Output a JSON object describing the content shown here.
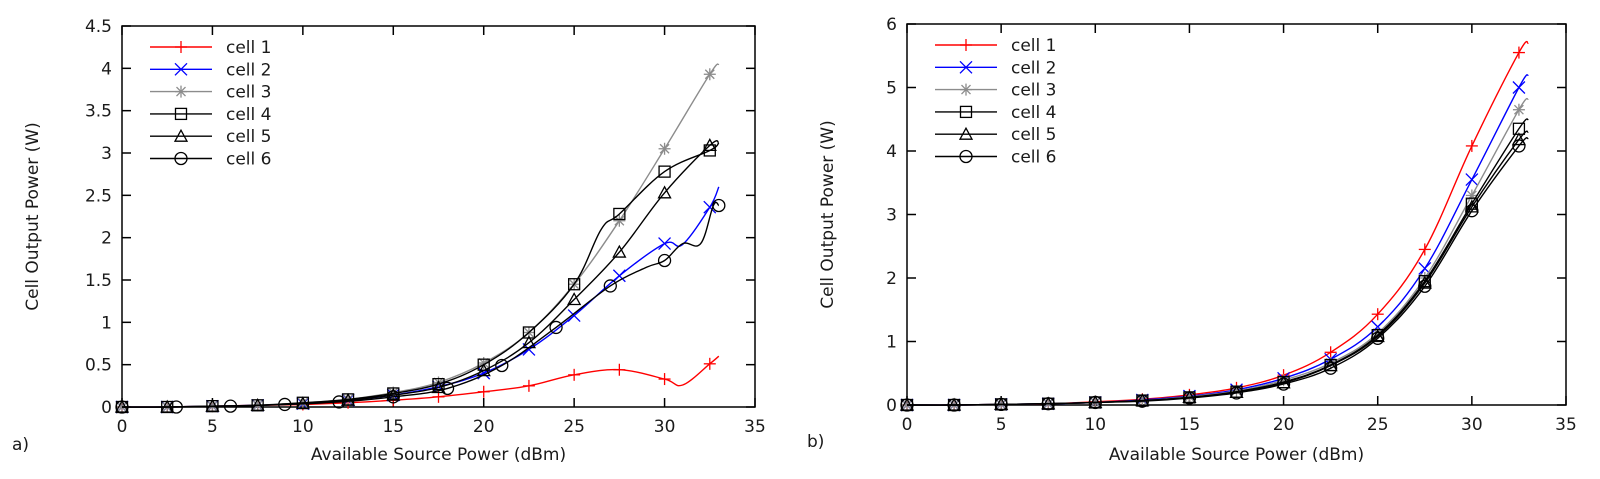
{
  "chart_data": [
    {
      "type": "line",
      "panel_label": "a)",
      "title": "",
      "xlabel": "Available Source Power (dBm)",
      "ylabel": "Cell Output Power (W)",
      "xlim": [
        0,
        35
      ],
      "ylim": [
        0,
        4.5
      ],
      "xticks": [
        0,
        5,
        10,
        15,
        20,
        25,
        30,
        35
      ],
      "yticks": [
        0,
        0.5,
        1,
        1.5,
        2,
        2.5,
        3,
        3.5,
        4,
        4.5
      ],
      "ytick_labels": [
        "0",
        "0.5",
        "1",
        "1.5",
        "2",
        "2.5",
        "3",
        "3.5",
        "4",
        "4.5"
      ],
      "xtick_labels": [
        "0",
        "5",
        "10",
        "15",
        "20",
        "25",
        "30",
        "35"
      ],
      "grid": false,
      "legend_position": "top-left",
      "series": [
        {
          "name": "cell 1",
          "color": "#ff0000",
          "marker": "plus",
          "x": [
            0,
            2.5,
            5,
            7.5,
            10,
            12.5,
            15,
            17.5,
            20,
            22.5,
            25,
            27.5,
            30,
            31,
            32.5,
            33
          ],
          "y": [
            0,
            0,
            0.01,
            0.02,
            0.03,
            0.05,
            0.08,
            0.12,
            0.18,
            0.25,
            0.38,
            0.44,
            0.33,
            0.26,
            0.51,
            0.6
          ],
          "marker_idx": [
            0,
            1,
            2,
            3,
            4,
            5,
            6,
            7,
            8,
            9,
            10,
            11,
            12,
            14
          ]
        },
        {
          "name": "cell 2",
          "color": "#0000ff",
          "marker": "x",
          "x": [
            0,
            2.5,
            5,
            7.5,
            10,
            12.5,
            15,
            17.5,
            20,
            22.5,
            25,
            27.5,
            30,
            31,
            32.5,
            33
          ],
          "y": [
            0,
            0,
            0.01,
            0.02,
            0.04,
            0.08,
            0.14,
            0.24,
            0.4,
            0.68,
            1.08,
            1.55,
            1.93,
            1.92,
            2.36,
            2.6
          ],
          "marker_idx": [
            0,
            1,
            2,
            3,
            4,
            5,
            6,
            7,
            8,
            9,
            10,
            11,
            12,
            14
          ]
        },
        {
          "name": "cell 3",
          "color": "#8c8c8c",
          "marker": "star",
          "x": [
            0,
            2.5,
            5,
            7.5,
            10,
            12.5,
            15,
            17.5,
            20,
            22.5,
            25,
            27.5,
            30,
            32.5,
            33
          ],
          "y": [
            0,
            0,
            0.01,
            0.02,
            0.05,
            0.09,
            0.17,
            0.29,
            0.52,
            0.88,
            1.45,
            2.2,
            3.05,
            3.93,
            4.05
          ],
          "marker_idx": [
            0,
            1,
            2,
            3,
            4,
            5,
            6,
            7,
            8,
            9,
            10,
            11,
            12,
            13
          ]
        },
        {
          "name": "cell 4",
          "color": "#000000",
          "marker": "square",
          "x": [
            0,
            2.5,
            5,
            7.5,
            10,
            12.5,
            15,
            17.5,
            20,
            22.5,
            25,
            26.5,
            27.5,
            30,
            32.5,
            33
          ],
          "y": [
            0,
            0,
            0.01,
            0.02,
            0.05,
            0.09,
            0.16,
            0.27,
            0.5,
            0.88,
            1.45,
            2.1,
            2.28,
            2.78,
            3.03,
            3.12
          ],
          "marker_idx": [
            0,
            1,
            2,
            3,
            4,
            5,
            6,
            7,
            8,
            9,
            10,
            12,
            13,
            14
          ]
        },
        {
          "name": "cell 5",
          "color": "#000000",
          "marker": "triangle",
          "x": [
            0,
            2.5,
            5,
            7.5,
            10,
            12.5,
            15,
            17.5,
            20,
            22.5,
            25,
            27.5,
            30,
            32.5,
            33
          ],
          "y": [
            0,
            0,
            0.01,
            0.02,
            0.04,
            0.08,
            0.14,
            0.23,
            0.43,
            0.76,
            1.27,
            1.83,
            2.53,
            3.09,
            3.12
          ],
          "marker_idx": [
            0,
            1,
            2,
            3,
            4,
            5,
            6,
            7,
            8,
            9,
            10,
            11,
            12,
            13
          ]
        },
        {
          "name": "cell 6",
          "color": "#000000",
          "marker": "circle",
          "x": [
            0,
            3,
            6,
            9,
            12,
            15,
            18,
            21,
            24,
            27,
            29,
            30,
            31,
            32,
            32.7,
            33
          ],
          "y": [
            0,
            0,
            0.01,
            0.03,
            0.06,
            0.12,
            0.22,
            0.49,
            0.94,
            1.43,
            1.65,
            1.73,
            1.93,
            1.93,
            2.38,
            2.38
          ],
          "marker_idx": [
            0,
            1,
            2,
            3,
            4,
            5,
            6,
            7,
            8,
            9,
            11,
            15
          ]
        }
      ]
    },
    {
      "type": "line",
      "panel_label": "b)",
      "title": "",
      "xlabel": "Available Source Power (dBm)",
      "ylabel": "Cell Output Power (W)",
      "xlim": [
        0,
        35
      ],
      "ylim": [
        0,
        6
      ],
      "xticks": [
        0,
        5,
        10,
        15,
        20,
        25,
        30,
        35
      ],
      "yticks": [
        0,
        1,
        2,
        3,
        4,
        5,
        6
      ],
      "ytick_labels": [
        "0",
        "1",
        "2",
        "3",
        "4",
        "5",
        "6"
      ],
      "xtick_labels": [
        "0",
        "5",
        "10",
        "15",
        "20",
        "25",
        "30",
        "35"
      ],
      "grid": false,
      "legend_position": "top-left",
      "series": [
        {
          "name": "cell 1",
          "color": "#ff0000",
          "marker": "plus",
          "x": [
            0,
            2.5,
            5,
            7.5,
            10,
            12.5,
            15,
            17.5,
            20,
            22.5,
            25,
            27.5,
            30,
            32.5,
            33
          ],
          "y": [
            0,
            0,
            0.01,
            0.02,
            0.05,
            0.09,
            0.16,
            0.27,
            0.47,
            0.83,
            1.43,
            2.45,
            4.08,
            5.55,
            5.7
          ],
          "marker_idx": [
            0,
            1,
            2,
            3,
            4,
            5,
            6,
            7,
            8,
            9,
            10,
            11,
            12,
            13
          ]
        },
        {
          "name": "cell 2",
          "color": "#0000ff",
          "marker": "x",
          "x": [
            0,
            2.5,
            5,
            7.5,
            10,
            12.5,
            15,
            17.5,
            20,
            22.5,
            25,
            27.5,
            30,
            32.5,
            33
          ],
          "y": [
            0,
            0,
            0.01,
            0.02,
            0.04,
            0.08,
            0.14,
            0.24,
            0.42,
            0.72,
            1.23,
            2.15,
            3.55,
            5.0,
            5.2
          ],
          "marker_idx": [
            0,
            1,
            2,
            3,
            4,
            5,
            6,
            7,
            8,
            9,
            10,
            11,
            12,
            13
          ]
        },
        {
          "name": "cell 3",
          "color": "#8c8c8c",
          "marker": "star",
          "x": [
            0,
            2.5,
            5,
            7.5,
            10,
            12.5,
            15,
            17.5,
            20,
            22.5,
            25,
            27.5,
            30,
            32.5,
            33
          ],
          "y": [
            0,
            0,
            0.01,
            0.02,
            0.04,
            0.07,
            0.13,
            0.22,
            0.39,
            0.66,
            1.13,
            2.0,
            3.3,
            4.65,
            4.82
          ],
          "marker_idx": [
            0,
            1,
            2,
            3,
            4,
            5,
            6,
            7,
            8,
            9,
            10,
            11,
            12,
            13
          ]
        },
        {
          "name": "cell 4",
          "color": "#000000",
          "marker": "square",
          "x": [
            0,
            2.5,
            5,
            7.5,
            10,
            12.5,
            15,
            17.5,
            20,
            22.5,
            25,
            27.5,
            30,
            32.5,
            33
          ],
          "y": [
            0,
            0,
            0.01,
            0.02,
            0.04,
            0.07,
            0.12,
            0.21,
            0.36,
            0.63,
            1.1,
            1.95,
            3.17,
            4.35,
            4.5
          ],
          "marker_idx": [
            0,
            1,
            2,
            3,
            4,
            5,
            6,
            7,
            8,
            9,
            10,
            11,
            12,
            13
          ]
        },
        {
          "name": "cell 5",
          "color": "#000000",
          "marker": "triangle",
          "x": [
            0,
            2.5,
            5,
            7.5,
            10,
            12.5,
            15,
            17.5,
            20,
            22.5,
            25,
            27.5,
            30,
            32.5,
            33
          ],
          "y": [
            0,
            0,
            0.01,
            0.02,
            0.04,
            0.07,
            0.12,
            0.2,
            0.35,
            0.62,
            1.08,
            1.92,
            3.12,
            4.18,
            4.3
          ],
          "marker_idx": [
            0,
            1,
            2,
            3,
            4,
            5,
            6,
            7,
            8,
            9,
            10,
            11,
            12,
            13
          ]
        },
        {
          "name": "cell 6",
          "color": "#000000",
          "marker": "circle",
          "x": [
            0,
            2.5,
            5,
            7.5,
            10,
            12.5,
            15,
            17.5,
            20,
            22.5,
            25,
            27.5,
            30,
            32.5,
            33
          ],
          "y": [
            0,
            0,
            0.01,
            0.02,
            0.04,
            0.06,
            0.11,
            0.19,
            0.33,
            0.58,
            1.05,
            1.87,
            3.06,
            4.08,
            4.2
          ],
          "marker_idx": [
            0,
            1,
            2,
            3,
            4,
            5,
            6,
            7,
            8,
            9,
            10,
            11,
            12,
            13
          ]
        }
      ]
    }
  ]
}
